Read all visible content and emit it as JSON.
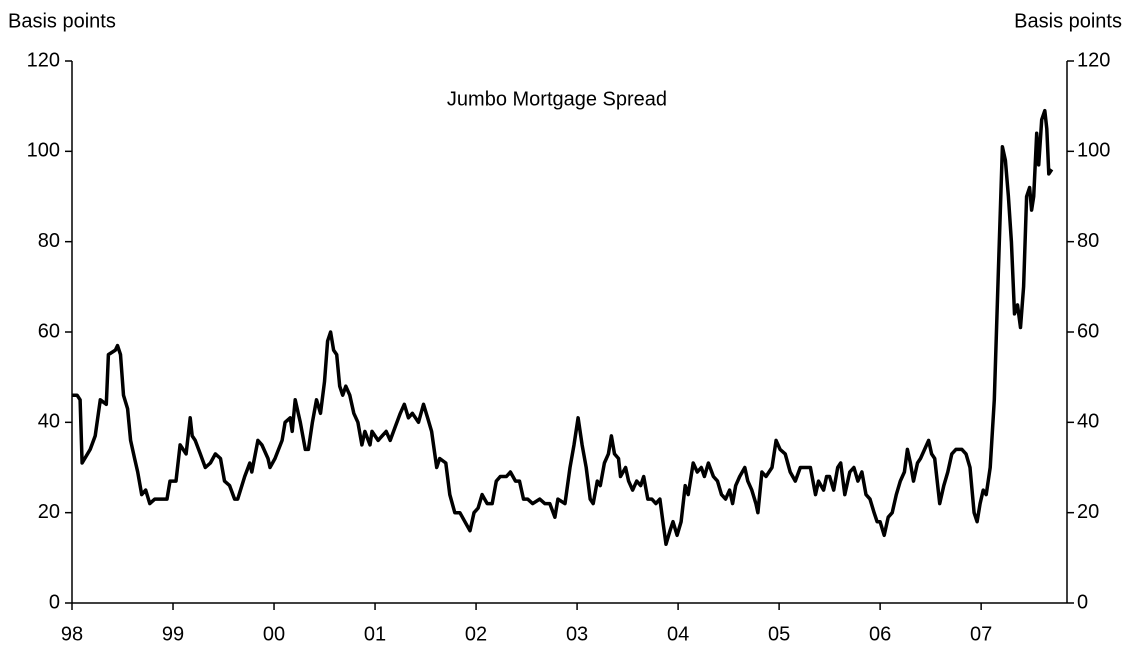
{
  "chart_data": {
    "type": "line",
    "title": "Jumbo Mortgage Spread",
    "y_label": "Basis points",
    "y2_label": "Basis points",
    "color": "#000000",
    "x": [
      1998.0,
      1998.05,
      1998.08,
      1998.1,
      1998.18,
      1998.23,
      1998.28,
      1998.34,
      1998.36,
      1998.43,
      1998.45,
      1998.48,
      1998.51,
      1998.55,
      1998.58,
      1998.62,
      1998.65,
      1998.69,
      1998.73,
      1998.77,
      1998.82,
      1998.87,
      1998.94,
      1998.97,
      1999.03,
      1999.07,
      1999.13,
      1999.17,
      1999.19,
      1999.22,
      1999.27,
      1999.32,
      1999.37,
      1999.42,
      1999.47,
      1999.51,
      1999.56,
      1999.61,
      1999.64,
      1999.71,
      1999.76,
      1999.78,
      1999.84,
      1999.88,
      1999.94,
      1999.96,
      2000.01,
      2000.08,
      2000.11,
      2000.16,
      2000.18,
      2000.21,
      2000.26,
      2000.31,
      2000.34,
      2000.38,
      2000.42,
      2000.46,
      2000.5,
      2000.53,
      2000.56,
      2000.59,
      2000.62,
      2000.65,
      2000.68,
      2000.71,
      2000.75,
      2000.79,
      2000.83,
      2000.87,
      2000.9,
      2000.95,
      2000.97,
      2001.03,
      2001.07,
      2001.11,
      2001.15,
      2001.2,
      2001.25,
      2001.29,
      2001.33,
      2001.37,
      2001.43,
      2001.48,
      2001.52,
      2001.56,
      2001.61,
      2001.64,
      2001.7,
      2001.74,
      2001.79,
      2001.84,
      2001.89,
      2001.94,
      2001.98,
      2002.02,
      2002.06,
      2002.11,
      2002.16,
      2002.2,
      2002.24,
      2002.3,
      2002.34,
      2002.39,
      2002.43,
      2002.47,
      2002.51,
      2002.56,
      2002.63,
      2002.68,
      2002.73,
      2002.78,
      2002.81,
      2002.88,
      2002.93,
      2002.97,
      2003.01,
      2003.05,
      2003.09,
      2003.13,
      2003.16,
      2003.2,
      2003.23,
      2003.27,
      2003.31,
      2003.34,
      2003.37,
      2003.41,
      2003.43,
      2003.48,
      2003.51,
      2003.55,
      2003.59,
      2003.63,
      2003.66,
      2003.7,
      2003.74,
      2003.78,
      2003.82,
      2003.85,
      2003.88,
      2003.92,
      2003.95,
      2003.99,
      2004.03,
      2004.07,
      2004.1,
      2004.15,
      2004.19,
      2004.23,
      2004.26,
      2004.3,
      2004.35,
      2004.39,
      2004.43,
      2004.47,
      2004.51,
      2004.54,
      2004.57,
      2004.61,
      2004.66,
      2004.69,
      2004.73,
      2004.77,
      2004.79,
      2004.83,
      2004.87,
      2004.93,
      2004.97,
      2005.01,
      2005.06,
      2005.11,
      2005.16,
      2005.21,
      2005.26,
      2005.31,
      2005.36,
      2005.39,
      2005.44,
      2005.47,
      2005.5,
      2005.54,
      2005.58,
      2005.61,
      2005.65,
      2005.7,
      2005.74,
      2005.78,
      2005.82,
      2005.86,
      2005.9,
      2005.94,
      2005.97,
      2006.0,
      2006.04,
      2006.08,
      2006.12,
      2006.16,
      2006.2,
      2006.24,
      2006.27,
      2006.3,
      2006.33,
      2006.37,
      2006.4,
      2006.44,
      2006.48,
      2006.51,
      2006.54,
      2006.59,
      2006.63,
      2006.67,
      2006.71,
      2006.75,
      2006.81,
      2006.85,
      2006.89,
      2006.93,
      2006.96,
      2006.99,
      2007.02,
      2007.05,
      2007.09,
      2007.13,
      2007.17,
      2007.21,
      2007.24,
      2007.27,
      2007.3,
      2007.33,
      2007.36,
      2007.39,
      2007.42,
      2007.45,
      2007.48,
      2007.5,
      2007.52,
      2007.55,
      2007.57,
      2007.6,
      2007.63,
      2007.65,
      2007.67,
      2007.7
    ],
    "values": [
      46,
      46,
      45,
      31,
      34,
      37,
      45,
      44,
      55,
      56,
      57,
      55,
      46,
      43,
      36,
      32,
      29,
      24,
      25,
      22,
      23,
      23,
      23,
      27,
      27,
      35,
      33,
      41,
      37,
      36,
      33,
      30,
      31,
      33,
      32,
      27,
      26,
      23,
      23,
      28,
      31,
      29,
      36,
      35,
      32,
      30,
      32,
      36,
      40,
      41,
      38,
      45,
      40,
      34,
      34,
      40,
      45,
      42,
      49,
      58,
      60,
      56,
      55,
      48,
      46,
      48,
      46,
      42,
      40,
      35,
      38,
      35,
      38,
      36,
      37,
      38,
      36,
      39,
      42,
      44,
      41,
      42,
      40,
      44,
      41,
      38,
      30,
      32,
      31,
      24,
      20,
      20,
      18,
      16,
      20,
      21,
      24,
      22,
      22,
      27,
      28,
      28,
      29,
      27,
      27,
      23,
      23,
      22,
      23,
      22,
      22,
      19,
      23,
      22,
      30,
      35,
      41,
      35,
      30,
      23,
      22,
      27,
      26,
      31,
      33,
      37,
      33,
      32,
      28,
      30,
      27,
      25,
      27,
      26,
      28,
      23,
      23,
      22,
      23,
      18,
      13,
      16,
      18,
      15,
      18,
      26,
      24,
      31,
      29,
      30,
      28,
      31,
      28,
      27,
      24,
      23,
      25,
      22,
      26,
      28,
      30,
      27,
      25,
      22,
      20,
      29,
      28,
      30,
      36,
      34,
      33,
      29,
      27,
      30,
      30,
      30,
      24,
      27,
      25,
      28,
      28,
      25,
      30,
      31,
      24,
      29,
      30,
      27,
      29,
      24,
      23,
      20,
      18,
      18,
      15,
      19,
      20,
      24,
      27,
      29,
      34,
      31,
      27,
      31,
      32,
      34,
      36,
      33,
      32,
      22,
      26,
      29,
      33,
      34,
      34,
      33,
      30,
      20,
      18,
      22,
      25,
      24,
      30,
      45,
      73,
      101,
      98,
      90,
      80,
      64,
      66,
      61,
      70,
      90,
      92,
      87,
      90,
      104,
      97,
      107,
      109,
      105,
      95,
      96
    ],
    "xlim": [
      1998,
      2007.85
    ],
    "xticks": [
      {
        "value": 1998,
        "label": "98"
      },
      {
        "value": 1999,
        "label": "99"
      },
      {
        "value": 2000,
        "label": "00"
      },
      {
        "value": 2001,
        "label": "01"
      },
      {
        "value": 2002,
        "label": "02"
      },
      {
        "value": 2003,
        "label": "03"
      },
      {
        "value": 2004,
        "label": "04"
      },
      {
        "value": 2005,
        "label": "05"
      },
      {
        "value": 2006,
        "label": "06"
      },
      {
        "value": 2007,
        "label": "07"
      }
    ],
    "ylim": [
      0,
      120
    ],
    "yticks": [
      0,
      20,
      40,
      60,
      80,
      100,
      120
    ],
    "y2lim": [
      0,
      120
    ],
    "y2ticks": [
      0,
      20,
      40,
      60,
      80,
      100,
      120
    ],
    "grid": false
  }
}
